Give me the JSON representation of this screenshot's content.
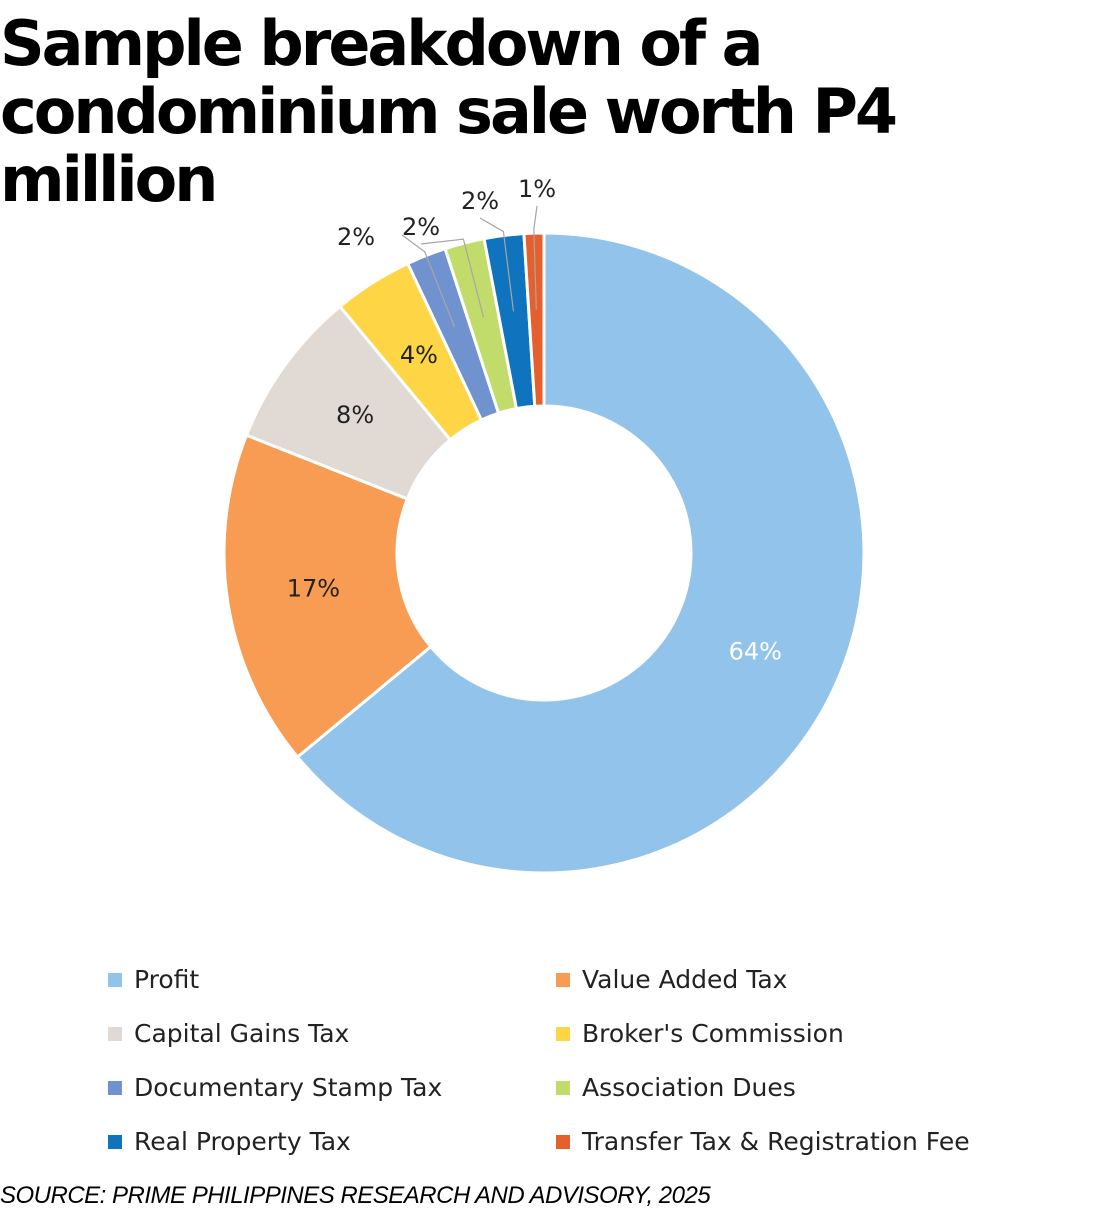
{
  "title": "Sample breakdown of a condominium sale worth P4 million",
  "source": "SOURCE: PRIME PHILIPPINES RESEARCH AND ADVISORY, 2025",
  "chart_data": {
    "type": "pie",
    "variant": "donut",
    "title": "Sample breakdown of a condominium sale worth P4 million",
    "legend_position": "bottom",
    "categories": [
      "Profit",
      "Value Added Tax",
      "Capital Gains Tax",
      "Broker's Commission",
      "Documentary Stamp Tax",
      "Association Dues",
      "Real Property Tax",
      "Transfer Tax & Registration Fee"
    ],
    "values": [
      64,
      17,
      8,
      4,
      2,
      2,
      2,
      1
    ],
    "data_labels": [
      "64%",
      "17%",
      "8%",
      "4%",
      "2%",
      "2%",
      "2%",
      "1%"
    ],
    "colors": [
      "#92c3eb",
      "#f79c52",
      "#e0d9d4",
      "#fdd545",
      "#7092cf",
      "#c2dc6b",
      "#0f73bd",
      "#e5602d"
    ]
  }
}
